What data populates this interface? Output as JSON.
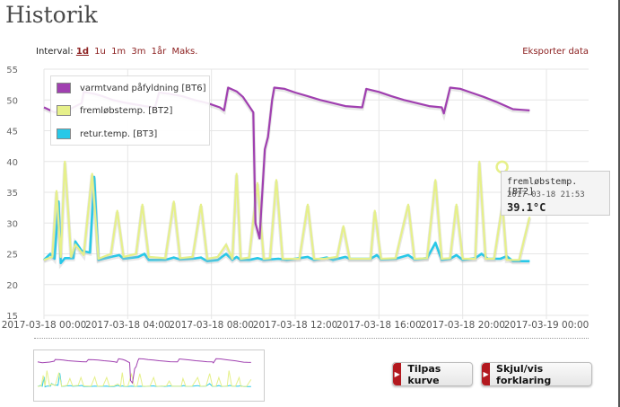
{
  "page": {
    "title": "Historik"
  },
  "toolbar": {
    "interval_label": "Interval:",
    "intervals": [
      "1d",
      "1u",
      "1m",
      "3m",
      "1år",
      "Maks."
    ],
    "active_interval": "1d",
    "export_label": "Eksporter data"
  },
  "legend": {
    "items": [
      {
        "label": "varmtvand påfyldning [BT6]",
        "color": "#a040b0"
      },
      {
        "label": "fremløbstemp. [BT2]",
        "color": "#e6f08a"
      },
      {
        "label": "retur.temp. [BT3]",
        "color": "#28c8e8"
      }
    ]
  },
  "tooltip": {
    "series": "fremløbstemp. [BT2]",
    "time": "2017-03-18 21:53",
    "value": "39.1°C"
  },
  "buttons": {
    "fit_label": "Tilpas kurve",
    "legend_toggle_label": "Skjul/vis forklaring"
  },
  "chart_data": {
    "type": "line",
    "xlabel": "",
    "ylabel": "",
    "ylim": [
      15,
      55
    ],
    "y_ticks": [
      15,
      20,
      25,
      30,
      35,
      40,
      45,
      50,
      55
    ],
    "x_range_hours": [
      0,
      24
    ],
    "x_tick_labels": [
      "2017-03-18 00:00",
      "2017-03-18 04:00",
      "2017-03-18 08:00",
      "2017-03-18 12:00",
      "2017-03-18 16:00",
      "2017-03-18 20:00",
      "2017-03-19 00:00"
    ],
    "grid": true,
    "legend_placement": "top-left",
    "series": [
      {
        "name": "varmtvand påfyldning [BT6]",
        "color": "#a040b0",
        "points": [
          [
            0,
            48.8
          ],
          [
            0.5,
            48
          ],
          [
            1.3,
            48.6
          ],
          [
            1.8,
            49.5
          ],
          [
            1.9,
            51.3
          ],
          [
            2.4,
            51
          ],
          [
            2.8,
            50.6
          ],
          [
            3.3,
            50
          ],
          [
            3.8,
            49.6
          ],
          [
            4.3,
            49.3
          ],
          [
            4.8,
            49
          ],
          [
            5.3,
            48.8
          ],
          [
            5.5,
            51.2
          ],
          [
            6,
            51
          ],
          [
            6.6,
            50.6
          ],
          [
            7.2,
            50
          ],
          [
            7.8,
            49.5
          ],
          [
            8.4,
            48.8
          ],
          [
            8.6,
            48.3
          ],
          [
            8.8,
            52
          ],
          [
            9.2,
            51.4
          ],
          [
            9.5,
            50.5
          ],
          [
            10,
            48
          ],
          [
            10.1,
            30
          ],
          [
            10.3,
            27.5
          ],
          [
            10.55,
            42
          ],
          [
            10.7,
            44
          ],
          [
            10.9,
            50
          ],
          [
            11,
            52
          ],
          [
            11.5,
            51.8
          ],
          [
            12,
            51.2
          ],
          [
            12.6,
            50.6
          ],
          [
            13.2,
            50
          ],
          [
            13.8,
            49.5
          ],
          [
            14.4,
            49
          ],
          [
            15.2,
            48.8
          ],
          [
            15.4,
            51.8
          ],
          [
            16,
            51.3
          ],
          [
            16.6,
            50.6
          ],
          [
            17.2,
            50
          ],
          [
            17.8,
            49.5
          ],
          [
            18.4,
            49
          ],
          [
            19,
            48.8
          ],
          [
            19.1,
            47.8
          ],
          [
            19.4,
            52
          ],
          [
            19.9,
            51.8
          ],
          [
            20.4,
            51.2
          ],
          [
            21,
            50.5
          ],
          [
            21.6,
            49.7
          ],
          [
            22,
            49.1
          ],
          [
            22.4,
            48.5
          ],
          [
            22.8,
            48.4
          ],
          [
            23.2,
            48.3
          ]
        ]
      },
      {
        "name": "fremløbstemp. [BT2]",
        "color": "#e6f08a",
        "points": [
          [
            0,
            24
          ],
          [
            0.4,
            24.5
          ],
          [
            0.6,
            35.2
          ],
          [
            0.8,
            24.5
          ],
          [
            1.0,
            40
          ],
          [
            1.3,
            24.5
          ],
          [
            1.5,
            26.5
          ],
          [
            1.9,
            24.8
          ],
          [
            2.3,
            38
          ],
          [
            2.6,
            24.2
          ],
          [
            3.2,
            25
          ],
          [
            3.5,
            32
          ],
          [
            3.8,
            24.5
          ],
          [
            4.4,
            25
          ],
          [
            4.7,
            33
          ],
          [
            5.0,
            24.5
          ],
          [
            5.8,
            24.3
          ],
          [
            6.2,
            33.5
          ],
          [
            6.5,
            24.3
          ],
          [
            7.1,
            24.5
          ],
          [
            7.5,
            33
          ],
          [
            7.8,
            24.2
          ],
          [
            8.3,
            24.5
          ],
          [
            8.7,
            26.5
          ],
          [
            9.0,
            24.2
          ],
          [
            9.2,
            38
          ],
          [
            9.4,
            24.2
          ],
          [
            9.8,
            24.4
          ],
          [
            10.2,
            36.5
          ],
          [
            10.5,
            24.2
          ],
          [
            10.8,
            24.3
          ],
          [
            11.1,
            37
          ],
          [
            11.4,
            24.2
          ],
          [
            11.8,
            24.2
          ],
          [
            12.2,
            24.2
          ],
          [
            12.6,
            33
          ],
          [
            12.9,
            24.2
          ],
          [
            13.4,
            24.2
          ],
          [
            14.0,
            24.5
          ],
          [
            14.3,
            29.5
          ],
          [
            14.6,
            24.2
          ],
          [
            15.6,
            24.2
          ],
          [
            15.8,
            32
          ],
          [
            16.1,
            24.2
          ],
          [
            16.8,
            24.3
          ],
          [
            17.4,
            33
          ],
          [
            17.7,
            24.2
          ],
          [
            18.3,
            24.3
          ],
          [
            18.7,
            37
          ],
          [
            19.0,
            24.2
          ],
          [
            19.4,
            24.3
          ],
          [
            19.7,
            33
          ],
          [
            20.0,
            24.2
          ],
          [
            20.6,
            24.2
          ],
          [
            20.8,
            40
          ],
          [
            21.1,
            24.2
          ],
          [
            21.5,
            24.2
          ],
          [
            21.9,
            33
          ],
          [
            22.1,
            24
          ],
          [
            22.7,
            24
          ],
          [
            23.2,
            31
          ]
        ]
      },
      {
        "name": "retur.temp. [BT3]",
        "color": "#28c8e8",
        "points": [
          [
            0,
            24
          ],
          [
            0.3,
            25
          ],
          [
            0.5,
            24.2
          ],
          [
            0.7,
            33.5
          ],
          [
            0.8,
            23.5
          ],
          [
            1.0,
            24.3
          ],
          [
            1.4,
            24.3
          ],
          [
            1.5,
            27
          ],
          [
            1.8,
            25.5
          ],
          [
            2.2,
            25.2
          ],
          [
            2.4,
            37.5
          ],
          [
            2.6,
            24
          ],
          [
            3.2,
            24.5
          ],
          [
            3.6,
            24.8
          ],
          [
            3.8,
            24.2
          ],
          [
            4.5,
            24.5
          ],
          [
            4.8,
            25
          ],
          [
            5.0,
            24
          ],
          [
            5.8,
            24
          ],
          [
            6.2,
            24.4
          ],
          [
            6.5,
            24.1
          ],
          [
            7.1,
            24.2
          ],
          [
            7.5,
            24.4
          ],
          [
            7.8,
            23.8
          ],
          [
            8.3,
            24
          ],
          [
            8.7,
            25
          ],
          [
            9.0,
            24
          ],
          [
            9.2,
            24.5
          ],
          [
            9.4,
            24
          ],
          [
            9.8,
            24
          ],
          [
            10.2,
            24.3
          ],
          [
            10.5,
            24
          ],
          [
            11.2,
            24.2
          ],
          [
            11.6,
            24
          ],
          [
            12.2,
            24.3
          ],
          [
            12.6,
            24.5
          ],
          [
            12.9,
            24
          ],
          [
            13.5,
            24.4
          ],
          [
            13.8,
            24
          ],
          [
            14.4,
            24.5
          ],
          [
            14.6,
            24.2
          ],
          [
            15.6,
            24.2
          ],
          [
            15.9,
            24.8
          ],
          [
            16.1,
            24.1
          ],
          [
            16.8,
            24.2
          ],
          [
            17.4,
            24.8
          ],
          [
            17.7,
            24.1
          ],
          [
            18.3,
            24.3
          ],
          [
            18.7,
            26.8
          ],
          [
            19.0,
            24
          ],
          [
            19.4,
            24.2
          ],
          [
            19.7,
            24.8
          ],
          [
            20.0,
            24
          ],
          [
            20.6,
            24.3
          ],
          [
            20.9,
            25
          ],
          [
            21.2,
            24.2
          ],
          [
            21.8,
            24.2
          ],
          [
            22.1,
            24.6
          ],
          [
            22.4,
            23.8
          ],
          [
            23.2,
            23.8
          ]
        ]
      }
    ]
  }
}
